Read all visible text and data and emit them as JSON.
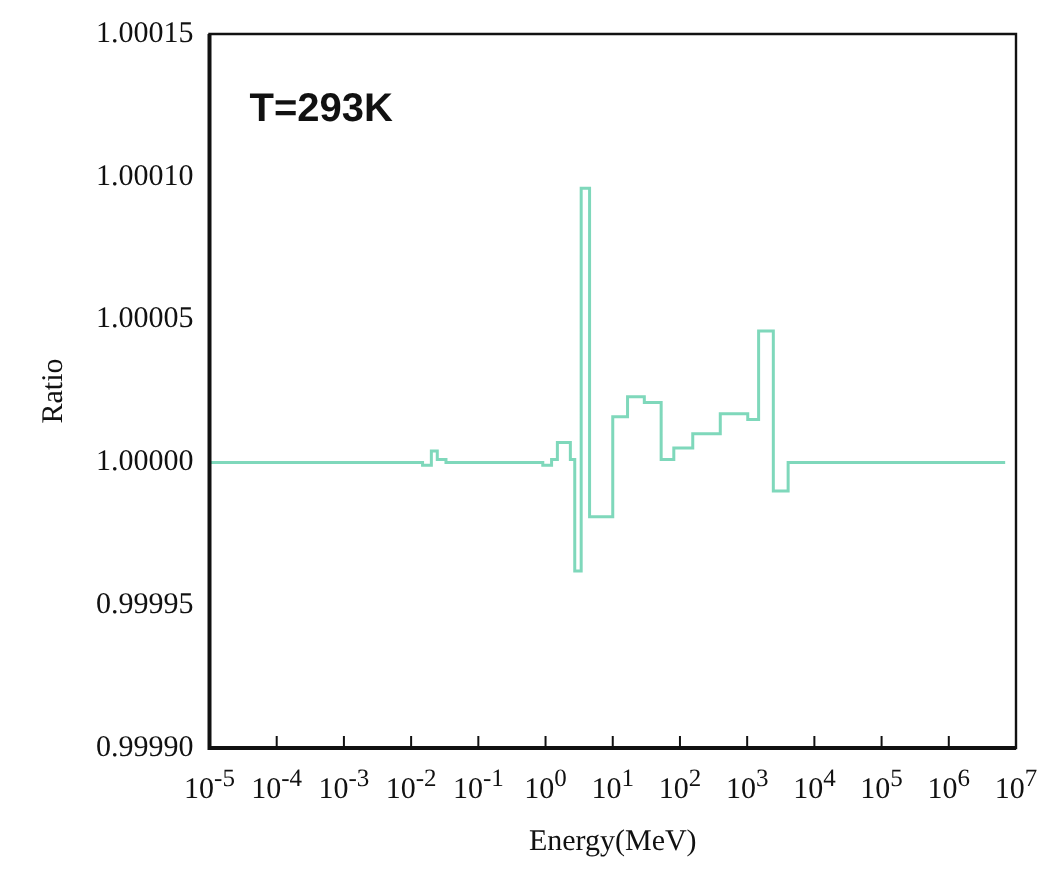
{
  "chart_data": {
    "type": "step",
    "xlabel": "Energy(MeV)",
    "ylabel": "Ratio",
    "annotations": [
      "T=293K"
    ],
    "x": [
      1e-05,
      0.0148,
      0.02,
      0.0245,
      0.033,
      0.91,
      1.23,
      1.5,
      2.34,
      2.72,
      3.39,
      4.52,
      10,
      16.6,
      29.5,
      52.5,
      81,
      155,
      398,
      1020,
      1480,
      2450,
      4070,
      6900000.0
    ],
    "series": [
      {
        "color": "#7fd8bb",
        "values": [
          1.0,
          0.999999,
          1.000004,
          1.000001,
          1.0,
          0.999999,
          1.000001,
          1.000007,
          1.000001,
          0.999962,
          1.000096,
          0.999981,
          1.000016,
          1.000023,
          1.000021,
          1.000001,
          1.000005,
          1.00001,
          1.000017,
          1.000015,
          1.000046,
          0.99999,
          1.0,
          1.0
        ]
      }
    ],
    "log": "x",
    "xlim": [
      1e-05,
      10000000.0
    ],
    "xticks": [
      {
        "value": 1e-05,
        "label": "10$^{-5}$"
      },
      {
        "value": 0.0001,
        "label": "10$^{-4}$"
      },
      {
        "value": 0.001,
        "label": "10$^{-3}$"
      },
      {
        "value": 0.01,
        "label": "10$^{-2}$"
      },
      {
        "value": 0.1,
        "label": "10$^{-1}$"
      },
      {
        "value": 1,
        "label": "10$^{0}$"
      },
      {
        "value": 10,
        "label": "10$^{1}$"
      },
      {
        "value": 100,
        "label": "10$^{2}$"
      },
      {
        "value": 1000,
        "label": "10$^{3}$"
      },
      {
        "value": 10000.0,
        "label": "10$^{4}$"
      },
      {
        "value": 100000.0,
        "label": "10$^{5}$"
      },
      {
        "value": 1000000.0,
        "label": "10$^{6}$"
      },
      {
        "value": 10000000.0,
        "label": "10$^{7}$"
      }
    ],
    "ylim": [
      0.9999,
      1.00015
    ],
    "yticks": [
      {
        "value": 0.9999,
        "label": "0.99990"
      },
      {
        "value": 0.99995,
        "label": "0.99995"
      },
      {
        "value": 1.0,
        "label": "1.00000"
      },
      {
        "value": 1.00005,
        "label": "1.00005"
      },
      {
        "value": 1.0001,
        "label": "1.00010"
      },
      {
        "value": 1.00015,
        "label": "1.00015"
      }
    ]
  }
}
